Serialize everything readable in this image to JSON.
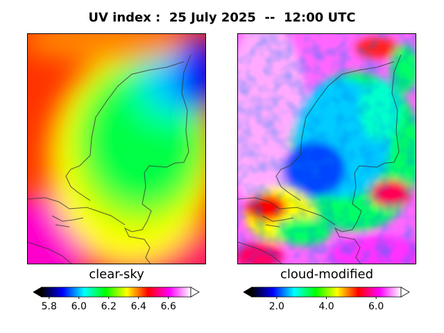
{
  "title": "UV index :  25 July 2025  --  12:00 UTC",
  "panels": [
    {
      "label": "clear-sky"
    },
    {
      "label": "cloud-modified"
    }
  ],
  "colorbars": [
    {
      "ticks": [
        "5.8",
        "6.0",
        "6.2",
        "6.4",
        "6.6"
      ],
      "tick_values": [
        5.8,
        6.0,
        6.2,
        6.4,
        6.6
      ],
      "range": [
        5.75,
        6.75
      ]
    },
    {
      "ticks": [
        "2.0",
        "4.0",
        "6.0"
      ],
      "tick_values": [
        2.0,
        4.0,
        6.0
      ],
      "range": [
        1.0,
        7.0
      ]
    }
  ],
  "colormap": [
    "#000000",
    "#0000ff",
    "#00ffff",
    "#00ff00",
    "#ffff00",
    "#ff0000",
    "#ff00ff",
    "#ffffff"
  ]
}
